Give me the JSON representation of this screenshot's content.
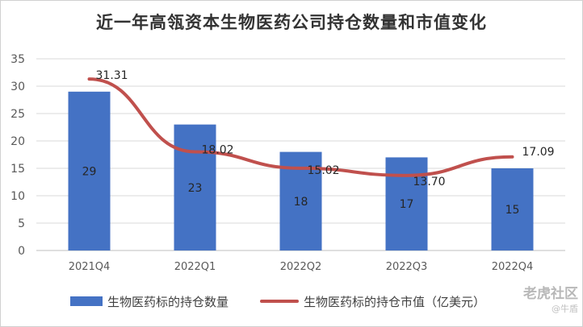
{
  "chart_data": {
    "type": "bar",
    "title": "近一年高瓴资本生物医药公司持仓数量和市值变化",
    "categories": [
      "2021Q4",
      "2022Q1",
      "2022Q2",
      "2022Q3",
      "2022Q4"
    ],
    "ylim": [
      0,
      35
    ],
    "yticks": [
      "0",
      "5",
      "10",
      "15",
      "20",
      "25",
      "30",
      "35"
    ],
    "grid": true,
    "legend_position": "bottom",
    "series": [
      {
        "name": "生物医药标的持仓数量",
        "type": "bar",
        "color": "#4472c4",
        "values": [
          29,
          23,
          18,
          17,
          15
        ],
        "labels": [
          "29",
          "23",
          "18",
          "17",
          "15"
        ]
      },
      {
        "name": "生物医药标的持仓市值（亿美元）",
        "type": "line",
        "color": "#c0504d",
        "values": [
          31.31,
          18.02,
          15.02,
          13.7,
          17.09
        ],
        "labels": [
          "31.31",
          "18.02",
          "15.02",
          "13.70",
          "17.09"
        ]
      }
    ]
  },
  "watermark": {
    "text": "老虎社区",
    "sub": "@牛盾"
  }
}
